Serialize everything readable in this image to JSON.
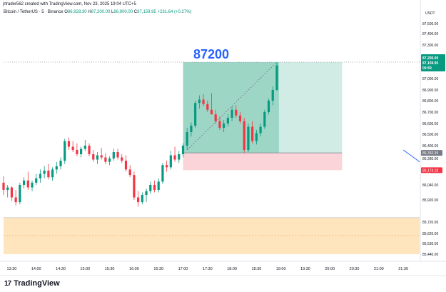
{
  "credit_line": "jrtrader562 created with TradingView.com, Nov 23, 2025 19:04 UTC+5",
  "legend": {
    "symbol": "Bitcoin / TetherUS · 5 · Binance",
    "open_label": "O",
    "open": "86,928.30",
    "high_label": "H",
    "high": "87,200.00",
    "low_label": "L",
    "low": "86,900.00",
    "close_label": "C",
    "close": "87,159.95",
    "change": "+231.64 (+0.27%)"
  },
  "currency": "USDT",
  "annotation_text": "87200",
  "footer": {
    "brand": "TradingView",
    "mark": "17"
  },
  "colors": {
    "up": "#089981",
    "down": "#f23645",
    "target_zone": "#1a9e7a",
    "stop_zone": "#f7b8c0",
    "support_zone": "#ffe0b2",
    "annotation": "#2962ff",
    "trendline": "#2962ff"
  },
  "price_tags": {
    "current": {
      "price": "87,200.00",
      "sub1": "87,159.95",
      "sub2": "00:59"
    },
    "entry": "86,332.39",
    "stop": "86,174.18"
  },
  "chart_data": {
    "type": "candlestick",
    "symbol": "Bitcoin / TetherUS",
    "interval": "5",
    "exchange": "Binance",
    "x_ticks": [
      "13:30",
      "14:00",
      "14:30",
      "15:00",
      "15:30",
      "16:00",
      "16:30",
      "17:00",
      "17:30",
      "18:00",
      "18:30",
      "19:00",
      "19:30",
      "20:00",
      "20:30",
      "21:00",
      "21:30"
    ],
    "y_ticks": [
      "87,500.00",
      "87,400.00",
      "87,300.00",
      "87,000.00",
      "86,900.00",
      "86,800.00",
      "86,700.00",
      "86,600.00",
      "86,500.00",
      "86,400.00",
      "86,280.00",
      "86,040.00",
      "85,920.00",
      "85,720.00",
      "85,620.00",
      "85,530.00",
      "85,440.00"
    ],
    "y_tick_values": [
      87500,
      87400,
      87300,
      87000,
      86900,
      86800,
      86700,
      86600,
      86500,
      86400,
      86280,
      86040,
      85920,
      85720,
      85620,
      85530,
      85440
    ],
    "ylim": [
      85420,
      87600
    ],
    "x_start": "13:20",
    "x_end": "21:50",
    "candles": [
      {
        "t": "13:20",
        "o": 86060,
        "h": 86120,
        "l": 85960,
        "c": 86000
      },
      {
        "t": "13:25",
        "o": 86000,
        "h": 86040,
        "l": 85940,
        "c": 86020
      },
      {
        "t": "13:30",
        "o": 86020,
        "h": 86030,
        "l": 85910,
        "c": 85940
      },
      {
        "t": "13:35",
        "o": 85940,
        "h": 86000,
        "l": 85870,
        "c": 85900
      },
      {
        "t": "13:40",
        "o": 85900,
        "h": 86060,
        "l": 85880,
        "c": 86040
      },
      {
        "t": "13:45",
        "o": 86040,
        "h": 86110,
        "l": 86010,
        "c": 86080
      },
      {
        "t": "13:50",
        "o": 86080,
        "h": 86160,
        "l": 86000,
        "c": 86020
      },
      {
        "t": "13:55",
        "o": 86020,
        "h": 86080,
        "l": 85990,
        "c": 86060
      },
      {
        "t": "14:00",
        "o": 86060,
        "h": 86140,
        "l": 86040,
        "c": 86100
      },
      {
        "t": "14:05",
        "o": 86100,
        "h": 86180,
        "l": 86060,
        "c": 86140
      },
      {
        "t": "14:10",
        "o": 86140,
        "h": 86210,
        "l": 86100,
        "c": 86170
      },
      {
        "t": "14:15",
        "o": 86170,
        "h": 86230,
        "l": 86090,
        "c": 86110
      },
      {
        "t": "14:20",
        "o": 86110,
        "h": 86200,
        "l": 86080,
        "c": 86180
      },
      {
        "t": "14:25",
        "o": 86180,
        "h": 86250,
        "l": 86140,
        "c": 86210
      },
      {
        "t": "14:30",
        "o": 86210,
        "h": 86290,
        "l": 86180,
        "c": 86260
      },
      {
        "t": "14:35",
        "o": 86260,
        "h": 86460,
        "l": 86230,
        "c": 86440
      },
      {
        "t": "14:40",
        "o": 86440,
        "h": 86470,
        "l": 86360,
        "c": 86390
      },
      {
        "t": "14:45",
        "o": 86390,
        "h": 86440,
        "l": 86340,
        "c": 86360
      },
      {
        "t": "14:50",
        "o": 86360,
        "h": 86420,
        "l": 86300,
        "c": 86320
      },
      {
        "t": "14:55",
        "o": 86320,
        "h": 86390,
        "l": 86290,
        "c": 86370
      },
      {
        "t": "15:00",
        "o": 86370,
        "h": 86450,
        "l": 86350,
        "c": 86400
      },
      {
        "t": "15:05",
        "o": 86400,
        "h": 86420,
        "l": 86300,
        "c": 86320
      },
      {
        "t": "15:10",
        "o": 86320,
        "h": 86360,
        "l": 86250,
        "c": 86270
      },
      {
        "t": "15:15",
        "o": 86270,
        "h": 86340,
        "l": 86230,
        "c": 86310
      },
      {
        "t": "15:20",
        "o": 86310,
        "h": 86380,
        "l": 86270,
        "c": 86290
      },
      {
        "t": "15:25",
        "o": 86290,
        "h": 86330,
        "l": 86230,
        "c": 86250
      },
      {
        "t": "15:30",
        "o": 86250,
        "h": 86300,
        "l": 86220,
        "c": 86280
      },
      {
        "t": "15:35",
        "o": 86280,
        "h": 86370,
        "l": 86260,
        "c": 86340
      },
      {
        "t": "15:40",
        "o": 86340,
        "h": 86370,
        "l": 86270,
        "c": 86290
      },
      {
        "t": "15:45",
        "o": 86290,
        "h": 86320,
        "l": 86240,
        "c": 86260
      },
      {
        "t": "15:50",
        "o": 86260,
        "h": 86310,
        "l": 86160,
        "c": 86180
      },
      {
        "t": "15:55",
        "o": 86180,
        "h": 86220,
        "l": 86110,
        "c": 86130
      },
      {
        "t": "16:00",
        "o": 86130,
        "h": 86160,
        "l": 85920,
        "c": 85940
      },
      {
        "t": "16:05",
        "o": 85940,
        "h": 85990,
        "l": 85860,
        "c": 85900
      },
      {
        "t": "16:10",
        "o": 85900,
        "h": 85980,
        "l": 85880,
        "c": 85960
      },
      {
        "t": "16:15",
        "o": 85960,
        "h": 86010,
        "l": 85900,
        "c": 85990
      },
      {
        "t": "16:20",
        "o": 85990,
        "h": 86070,
        "l": 85970,
        "c": 86040
      },
      {
        "t": "16:25",
        "o": 86040,
        "h": 86080,
        "l": 85980,
        "c": 86000
      },
      {
        "t": "16:30",
        "o": 86000,
        "h": 86100,
        "l": 85980,
        "c": 86070
      },
      {
        "t": "16:35",
        "o": 86070,
        "h": 86240,
        "l": 86050,
        "c": 86220
      },
      {
        "t": "16:40",
        "o": 86220,
        "h": 86260,
        "l": 86160,
        "c": 86200
      },
      {
        "t": "16:45",
        "o": 86200,
        "h": 86350,
        "l": 86180,
        "c": 86310
      },
      {
        "t": "16:50",
        "o": 86310,
        "h": 86390,
        "l": 86250,
        "c": 86270
      },
      {
        "t": "16:55",
        "o": 86270,
        "h": 86350,
        "l": 86240,
        "c": 86320
      },
      {
        "t": "17:00",
        "o": 86320,
        "h": 86420,
        "l": 86290,
        "c": 86400
      },
      {
        "t": "17:05",
        "o": 86400,
        "h": 86560,
        "l": 86360,
        "c": 86520
      },
      {
        "t": "17:10",
        "o": 86520,
        "h": 86610,
        "l": 86480,
        "c": 86580
      },
      {
        "t": "17:15",
        "o": 86580,
        "h": 86800,
        "l": 86560,
        "c": 86780
      },
      {
        "t": "17:20",
        "o": 86780,
        "h": 86850,
        "l": 86730,
        "c": 86810
      },
      {
        "t": "17:25",
        "o": 86810,
        "h": 86860,
        "l": 86750,
        "c": 86770
      },
      {
        "t": "17:30",
        "o": 86770,
        "h": 86800,
        "l": 86700,
        "c": 86720
      },
      {
        "t": "17:35",
        "o": 86720,
        "h": 86870,
        "l": 86700,
        "c": 86680
      },
      {
        "t": "17:40",
        "o": 86680,
        "h": 86720,
        "l": 86600,
        "c": 86620
      },
      {
        "t": "17:45",
        "o": 86620,
        "h": 86660,
        "l": 86540,
        "c": 86560
      },
      {
        "t": "17:50",
        "o": 86560,
        "h": 86630,
        "l": 86520,
        "c": 86600
      },
      {
        "t": "17:55",
        "o": 86600,
        "h": 86680,
        "l": 86570,
        "c": 86650
      },
      {
        "t": "18:00",
        "o": 86650,
        "h": 86750,
        "l": 86620,
        "c": 86720
      },
      {
        "t": "18:05",
        "o": 86720,
        "h": 86760,
        "l": 86650,
        "c": 86670
      },
      {
        "t": "18:10",
        "o": 86670,
        "h": 86700,
        "l": 86600,
        "c": 86620
      },
      {
        "t": "18:15",
        "o": 86620,
        "h": 86650,
        "l": 86330,
        "c": 86360
      },
      {
        "t": "18:20",
        "o": 86360,
        "h": 86600,
        "l": 86340,
        "c": 86570
      },
      {
        "t": "18:25",
        "o": 86570,
        "h": 86620,
        "l": 86420,
        "c": 86440
      },
      {
        "t": "18:30",
        "o": 86440,
        "h": 86540,
        "l": 86410,
        "c": 86510
      },
      {
        "t": "18:35",
        "o": 86510,
        "h": 86600,
        "l": 86480,
        "c": 86570
      },
      {
        "t": "18:40",
        "o": 86570,
        "h": 86720,
        "l": 86550,
        "c": 86700
      },
      {
        "t": "18:45",
        "o": 86700,
        "h": 86820,
        "l": 86680,
        "c": 86800
      },
      {
        "t": "18:50",
        "o": 86800,
        "h": 86930,
        "l": 86760,
        "c": 86900
      },
      {
        "t": "18:55",
        "o": 86900,
        "h": 87200,
        "l": 86890,
        "c": 87160
      }
    ],
    "zones": {
      "long_position": {
        "start": "17:00",
        "end": "20:15",
        "entry": 86332.39,
        "target": 87200,
        "stop": 86174.18
      },
      "support": {
        "start": "13:20",
        "end": "21:50",
        "top": 85760,
        "bottom": 85440
      }
    },
    "trendline": {
      "from": {
        "t": "21:30",
        "price": 86360
      },
      "to": {
        "t": "21:50",
        "price": 86250
      }
    },
    "title": "",
    "xlabel": "",
    "ylabel": ""
  }
}
